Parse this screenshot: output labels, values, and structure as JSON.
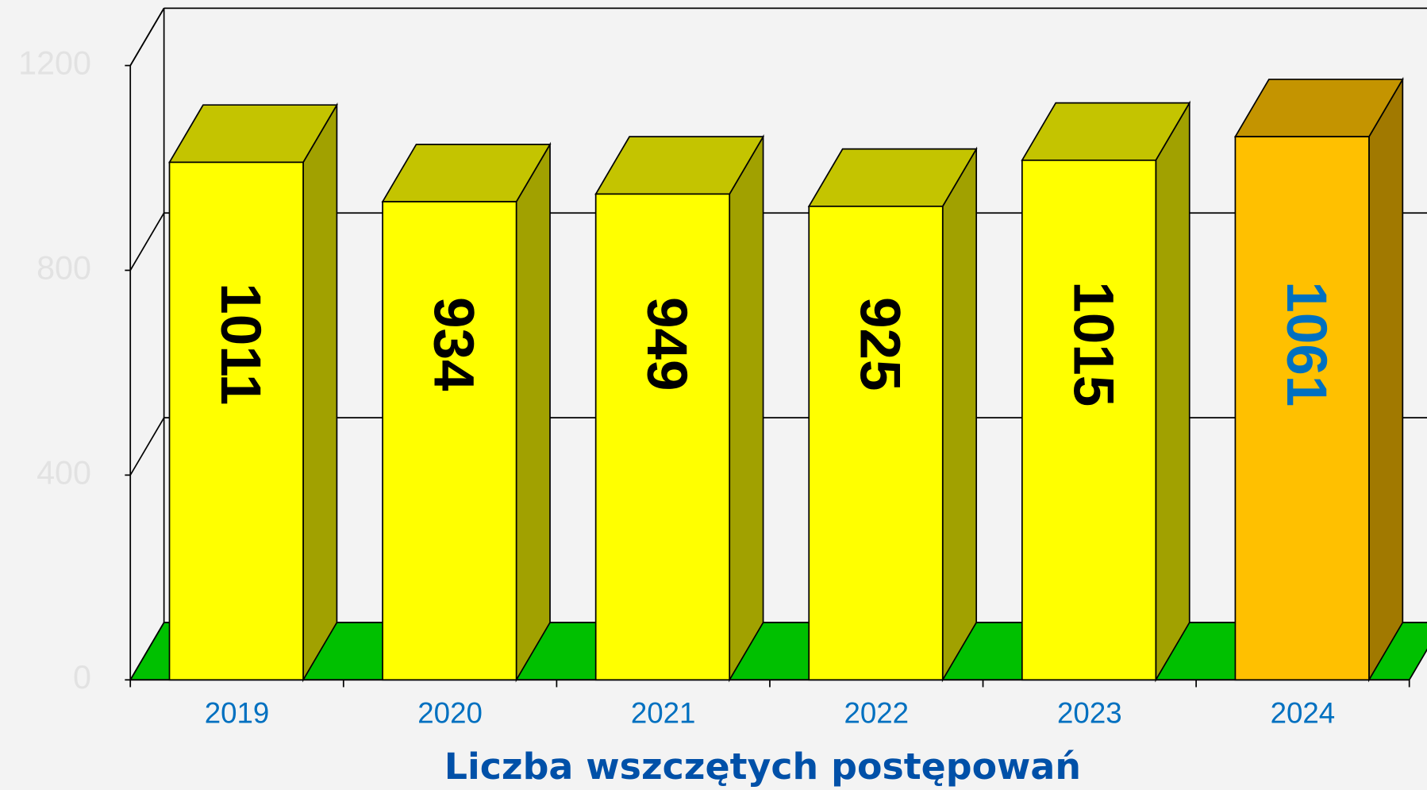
{
  "chart_data": {
    "type": "bar",
    "x_label": "Liczba wszczętych postępowań",
    "categories": [
      "2019",
      "2020",
      "2021",
      "2022",
      "2023",
      "2024"
    ],
    "values": [
      1011,
      934,
      949,
      925,
      1015,
      1061
    ],
    "colors": [
      "#ffff00",
      "#ffff00",
      "#ffff00",
      "#ffff00",
      "#ffff00",
      "#ffc000"
    ],
    "value_label_colors": [
      "#000000",
      "#000000",
      "#000000",
      "#000000",
      "#000000",
      "#0070c0"
    ],
    "floor_color": "#00c000",
    "ylim": [
      0,
      1200
    ],
    "yticks": [
      0,
      400,
      800,
      1200
    ],
    "grid": true
  }
}
